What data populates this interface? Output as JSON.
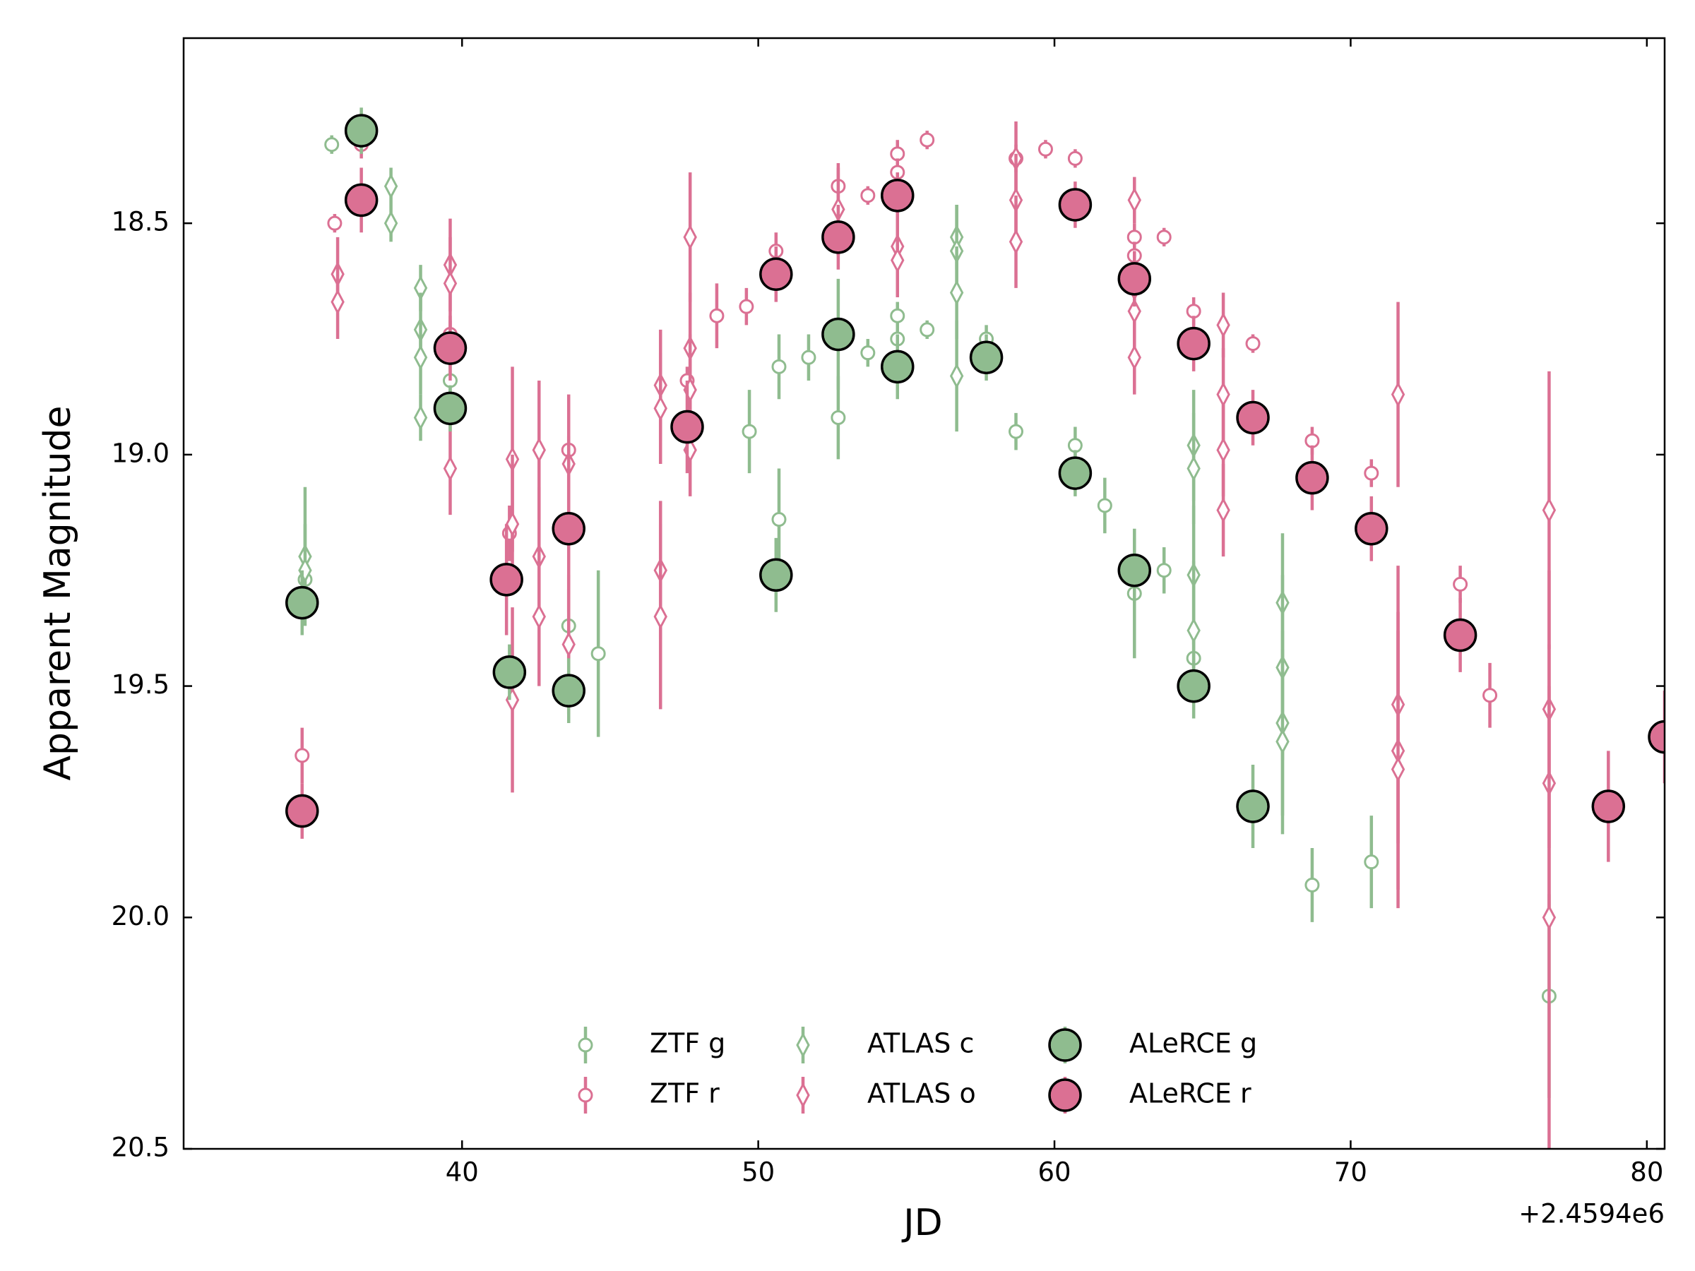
{
  "chart_data": {
    "type": "errorbar",
    "x_label": "JD",
    "y_label": "Apparent Magnitude",
    "x_offset_label": "+2.4594e6",
    "xlim": [
      30.6,
      80.6
    ],
    "xticks": [
      40,
      50,
      60,
      70,
      80
    ],
    "ylim": [
      20.5,
      18.1
    ],
    "yticks": [
      18.5,
      {
        "value": 19,
        "label": "19.0"
      },
      19.5,
      {
        "value": 20,
        "label": "20.0"
      },
      20.5
    ],
    "legend": "lower center",
    "series": [
      {
        "name": "ZTF g",
        "color": "#8fbc8f",
        "marker": "circle",
        "x": [
          35.6,
          34.7,
          39.6,
          43.6,
          44.6,
          49.7,
          50.7,
          50.7,
          51.7,
          52.7,
          53.7,
          54.7,
          54.7,
          55.7,
          57.7,
          58.7,
          60.7,
          61.7,
          62.7,
          63.7,
          64.7,
          68.7,
          70.7,
          76.7
        ],
        "values": [
          18.33,
          19.27,
          18.84,
          19.37,
          19.43,
          18.95,
          18.81,
          19.14,
          18.79,
          18.92,
          18.78,
          18.7,
          18.75,
          18.73,
          18.75,
          18.95,
          18.98,
          19.11,
          19.3,
          19.25,
          19.44,
          19.93,
          19.88,
          20.17
        ],
        "errors": [
          0.02,
          0.05,
          0.04,
          0.08,
          0.18,
          0.09,
          0.07,
          0.11,
          0.05,
          0.09,
          0.03,
          0.03,
          0.03,
          0.02,
          0.03,
          0.04,
          0.04,
          0.06,
          0.14,
          0.05,
          0.05,
          0.08,
          0.1,
          0.22
        ]
      },
      {
        "name": "ZTF r",
        "color": "#db7093",
        "marker": "circle",
        "x": [
          35.7,
          34.6,
          36.6,
          39.6,
          41.6,
          43.6,
          47.6,
          48.6,
          49.6,
          50.6,
          52.7,
          53.7,
          54.7,
          54.7,
          55.7,
          58.7,
          59.7,
          60.7,
          62.7,
          62.7,
          63.7,
          64.7,
          66.7,
          68.7,
          70.7,
          73.7,
          74.7
        ],
        "values": [
          18.5,
          19.65,
          18.33,
          18.74,
          19.17,
          18.99,
          18.84,
          18.7,
          18.68,
          18.56,
          18.42,
          18.44,
          18.35,
          18.39,
          18.32,
          18.36,
          18.34,
          18.36,
          18.53,
          18.57,
          18.53,
          18.69,
          18.76,
          18.97,
          19.04,
          19.28,
          19.52
        ],
        "errors": [
          0.02,
          0.06,
          0.03,
          0.03,
          0.06,
          0.03,
          0.03,
          0.07,
          0.04,
          0.04,
          0.04,
          0.02,
          0.03,
          0.03,
          0.02,
          0.03,
          0.02,
          0.02,
          0.03,
          0.03,
          0.02,
          0.03,
          0.02,
          0.03,
          0.03,
          0.04,
          0.07
        ]
      },
      {
        "name": "ATLAS c",
        "color": "#8fbc8f",
        "marker": "diamond",
        "x": [
          34.7,
          34.7,
          37.6,
          37.6,
          38.6,
          38.6,
          38.6,
          38.6,
          56.7,
          56.7,
          56.7,
          56.7,
          64.7,
          64.7,
          64.7,
          64.7,
          67.7,
          67.7,
          67.7,
          67.7
        ],
        "values": [
          19.22,
          19.25,
          18.42,
          18.5,
          18.64,
          18.73,
          18.79,
          18.92,
          18.53,
          18.56,
          18.65,
          18.83,
          18.98,
          19.03,
          19.26,
          19.38,
          19.32,
          19.46,
          19.58,
          19.62
        ],
        "errors": [
          0.15,
          0.1,
          0.04,
          0.04,
          0.05,
          0.08,
          0.08,
          0.05,
          0.07,
          0.1,
          0.1,
          0.12,
          0.12,
          0.12,
          0.15,
          0.15,
          0.15,
          0.2,
          0.2,
          0.2
        ]
      },
      {
        "name": "ATLAS o",
        "color": "#db7093",
        "marker": "diamond",
        "x": [
          35.8,
          35.8,
          39.6,
          39.6,
          39.6,
          41.7,
          41.7,
          41.7,
          42.6,
          42.6,
          42.6,
          43.6,
          43.6,
          46.7,
          46.7,
          46.7,
          46.7,
          47.7,
          47.7,
          47.7,
          47.7,
          52.7,
          54.7,
          54.7,
          58.7,
          58.7,
          58.7,
          62.7,
          62.7,
          62.7,
          62.7,
          65.7,
          65.7,
          65.7,
          65.7,
          71.6,
          71.6,
          71.6,
          71.6,
          76.7,
          76.7,
          76.7,
          76.7
        ],
        "values": [
          18.61,
          18.67,
          18.59,
          18.63,
          19.03,
          19.01,
          19.15,
          19.53,
          18.99,
          19.22,
          19.35,
          19.02,
          19.41,
          18.85,
          18.9,
          19.25,
          19.35,
          18.53,
          18.77,
          18.86,
          18.99,
          18.47,
          18.55,
          18.58,
          18.36,
          18.45,
          18.54,
          18.45,
          18.64,
          18.69,
          18.79,
          18.72,
          18.87,
          18.99,
          19.12,
          18.87,
          19.54,
          19.64,
          19.68,
          19.12,
          19.55,
          19.71,
          20.0
        ],
        "errors": [
          0.08,
          0.08,
          0.1,
          0.1,
          0.1,
          0.2,
          0.15,
          0.2,
          0.15,
          0.15,
          0.15,
          0.15,
          0.15,
          0.12,
          0.12,
          0.15,
          0.2,
          0.14,
          0.12,
          0.12,
          0.1,
          0.1,
          0.08,
          0.08,
          0.08,
          0.1,
          0.1,
          0.05,
          0.08,
          0.08,
          0.08,
          0.07,
          0.1,
          0.1,
          0.1,
          0.2,
          0.3,
          0.3,
          0.3,
          0.3,
          0.3,
          0.3,
          0.5
        ]
      },
      {
        "name": "ALeRCE g",
        "color": "#8fbc8f",
        "marker": "big-circle",
        "x": [
          34.6,
          36.6,
          39.6,
          41.6,
          43.6,
          50.6,
          52.7,
          54.7,
          57.7,
          60.7,
          62.7,
          64.7,
          66.7
        ],
        "values": [
          19.32,
          18.3,
          18.9,
          19.47,
          19.51,
          19.26,
          18.74,
          18.81,
          18.79,
          19.04,
          19.25,
          19.5,
          19.76
        ],
        "errors": [
          0.07,
          0.05,
          0.05,
          0.06,
          0.07,
          0.08,
          0.12,
          0.07,
          0.05,
          0.05,
          0.07,
          0.07,
          0.09
        ]
      },
      {
        "name": "ALeRCE r",
        "color": "#db7093",
        "marker": "big-circle",
        "x": [
          34.6,
          36.6,
          39.6,
          41.5,
          43.6,
          47.6,
          50.6,
          52.7,
          54.7,
          60.7,
          62.7,
          64.7,
          66.7,
          68.7,
          70.7,
          73.7,
          78.7,
          80.6
        ],
        "values": [
          19.77,
          18.45,
          18.77,
          19.27,
          19.16,
          18.94,
          18.61,
          18.53,
          18.44,
          18.46,
          18.62,
          18.76,
          18.92,
          19.05,
          19.16,
          19.39,
          19.76,
          19.61
        ],
        "errors": [
          0.06,
          0.07,
          0.07,
          0.12,
          0.18,
          0.1,
          0.06,
          0.07,
          0.05,
          0.05,
          0.06,
          0.06,
          0.06,
          0.07,
          0.07,
          0.08,
          0.12,
          0.1
        ]
      }
    ]
  }
}
